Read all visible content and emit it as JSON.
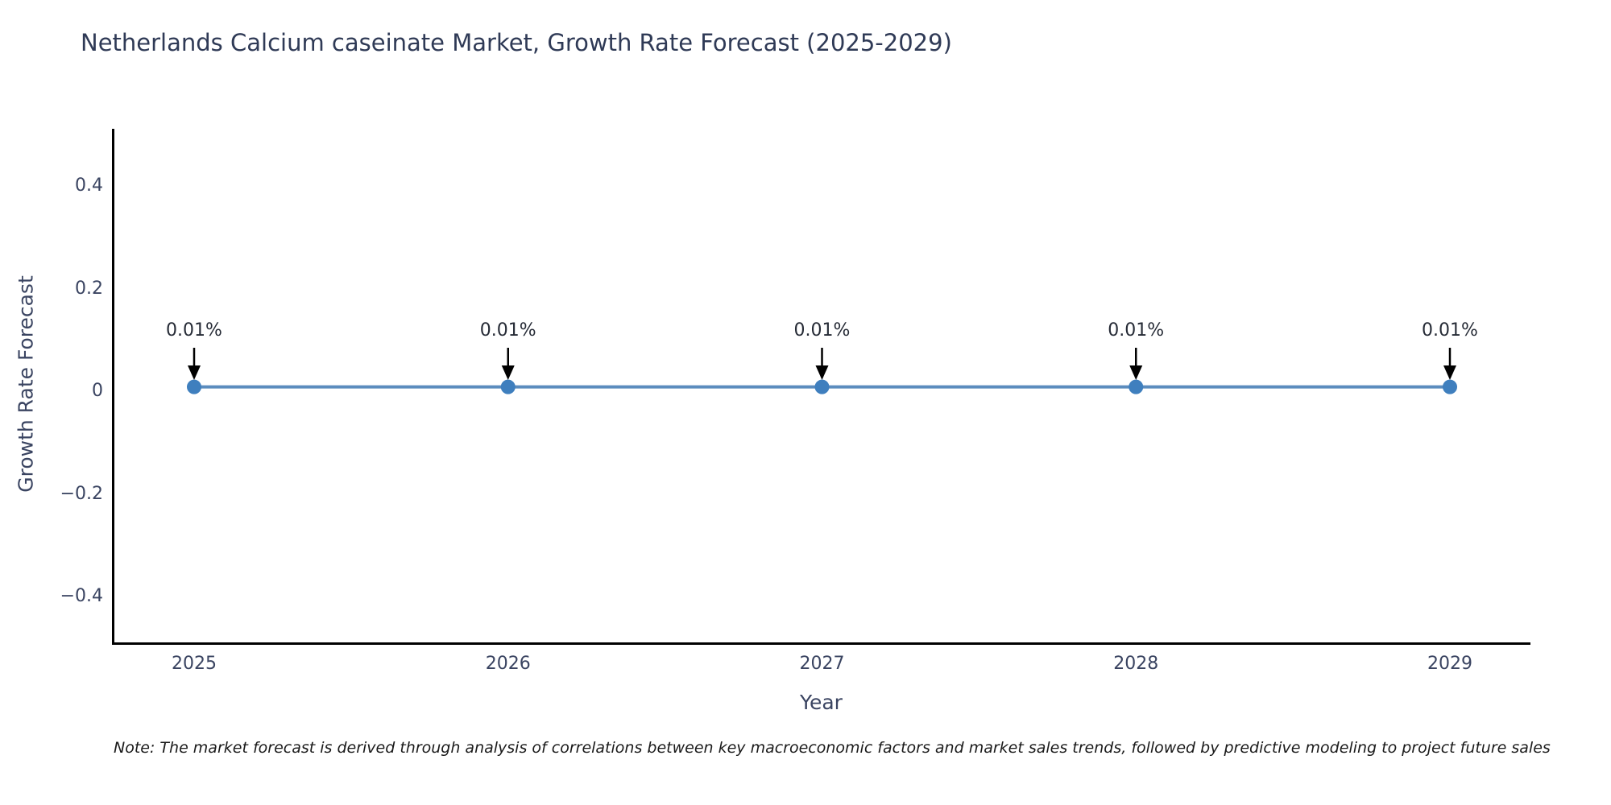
{
  "title": "Netherlands Calcium caseinate Market, Growth Rate Forecast (2025-2029)",
  "note": "Note: The market forecast is derived through analysis of correlations between key macroeconomic factors and market sales trends, followed by predictive modeling to project future sales",
  "chart_data": {
    "type": "line",
    "title": "Netherlands Calcium caseinate Market, Growth Rate Forecast (2025-2029)",
    "xlabel": "Year",
    "ylabel": "Growth Rate Forecast",
    "x": [
      "2025",
      "2026",
      "2027",
      "2028",
      "2029"
    ],
    "series": [
      {
        "name": "Growth Rate Forecast",
        "values": [
          0.01,
          0.01,
          0.01,
          0.01,
          0.01
        ]
      }
    ],
    "point_labels": [
      "0.01%",
      "0.01%",
      "0.01%",
      "0.01%",
      "0.01%"
    ],
    "yticks": [
      {
        "value": 0.4,
        "label": "0.4"
      },
      {
        "value": 0.2,
        "label": "0.2"
      },
      {
        "value": 0,
        "label": "0"
      },
      {
        "value": -0.2,
        "label": "−0.2"
      },
      {
        "value": -0.4,
        "label": "−0.4"
      }
    ],
    "ylim": [
      -0.49,
      0.51
    ],
    "grid": false,
    "legend": "none",
    "colors": {
      "line": "#5b8cbe",
      "marker": "#3f7fbe",
      "axis": "#000000",
      "arrow": "#000000",
      "annotation_text": "#262b36",
      "title_text": "#2f3a56",
      "tick_text": "#3a4461"
    }
  }
}
